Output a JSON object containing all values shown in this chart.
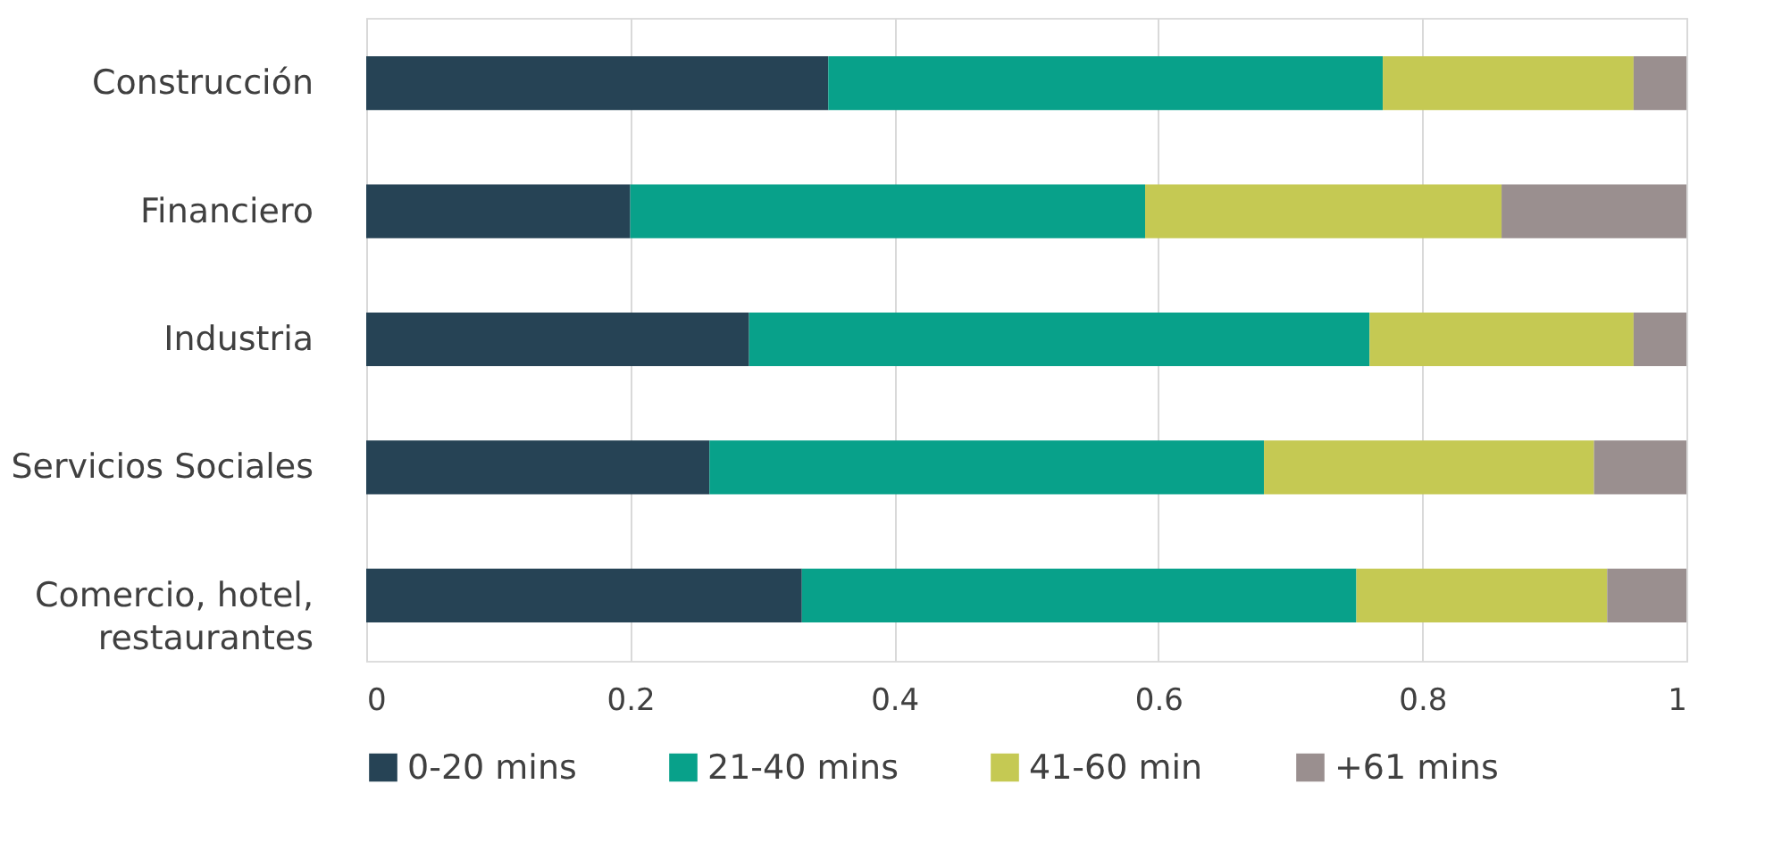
{
  "chart_data": {
    "type": "bar",
    "orientation": "horizontal",
    "stacked": true,
    "categories": [
      "Construcción",
      "Financiero",
      "Industria",
      "Servicios Sociales",
      "Comercio, hotel, restaurantes"
    ],
    "series": [
      {
        "name": "0-20 mins",
        "color": "#264355",
        "values": [
          0.35,
          0.2,
          0.29,
          0.26,
          0.33
        ]
      },
      {
        "name": "21-40 mins",
        "color": "#08a18a",
        "values": [
          0.42,
          0.39,
          0.47,
          0.42,
          0.42
        ]
      },
      {
        "name": "41-60 min",
        "color": "#c5c953",
        "values": [
          0.19,
          0.27,
          0.2,
          0.25,
          0.19
        ]
      },
      {
        "name": "+61 mins",
        "color": "#9a8f8f",
        "values": [
          0.04,
          0.14,
          0.04,
          0.07,
          0.06
        ]
      }
    ],
    "xlim": [
      0,
      1
    ],
    "xticks": [
      0,
      0.2,
      0.4,
      0.6,
      0.8,
      1
    ],
    "grid": "x",
    "legend": "bottom"
  }
}
